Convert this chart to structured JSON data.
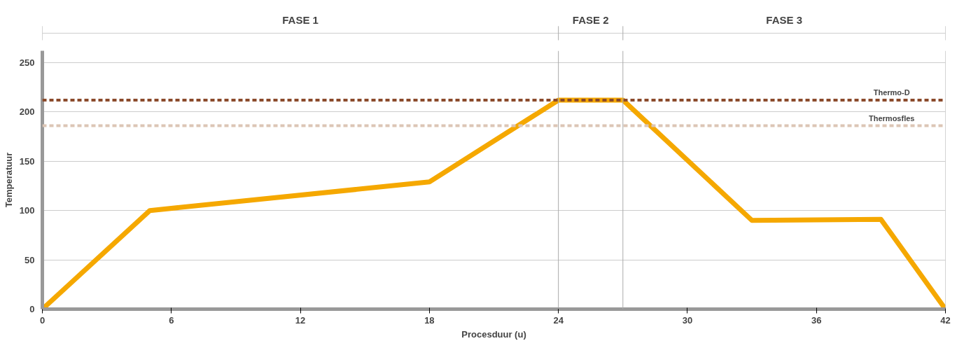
{
  "chart_data": {
    "type": "line",
    "xlabel": "Procesduur (u)",
    "ylabel": "Temperatuur",
    "x": [
      0,
      5,
      18,
      24,
      27,
      33,
      39,
      42
    ],
    "series": [
      {
        "color": "#f5a800",
        "values": [
          0,
          100,
          129,
          212,
          212,
          90,
          91,
          0
        ]
      }
    ],
    "xlim": [
      0,
      42
    ],
    "xticks": [
      0,
      6,
      12,
      18,
      24,
      30,
      36,
      42
    ],
    "ylim": [
      0,
      262
    ],
    "yticks": [
      0,
      50,
      100,
      150,
      200,
      250
    ],
    "grid": "y",
    "marker": "none",
    "line_style": "solid",
    "ref_lines": [
      {
        "axis": "y",
        "value": 212,
        "label": "Thermo-D",
        "color": "#8b4a2b",
        "line_style": "dashed"
      },
      {
        "axis": "y",
        "value": 186,
        "label": "Thermosfles",
        "color": "#dcc5b5",
        "line_style": "dashed"
      },
      {
        "axis": "x",
        "value": 24,
        "color": "#aaaaaa",
        "line_style": "solid"
      },
      {
        "axis": "x",
        "value": 27,
        "color": "#aaaaaa",
        "line_style": "solid"
      },
      {
        "axis": "x",
        "value": 42,
        "color": "#aaaaaa",
        "line_style": "solid"
      }
    ],
    "annotations": [
      "FASE 1",
      "FASE 2",
      "FASE 3"
    ]
  }
}
